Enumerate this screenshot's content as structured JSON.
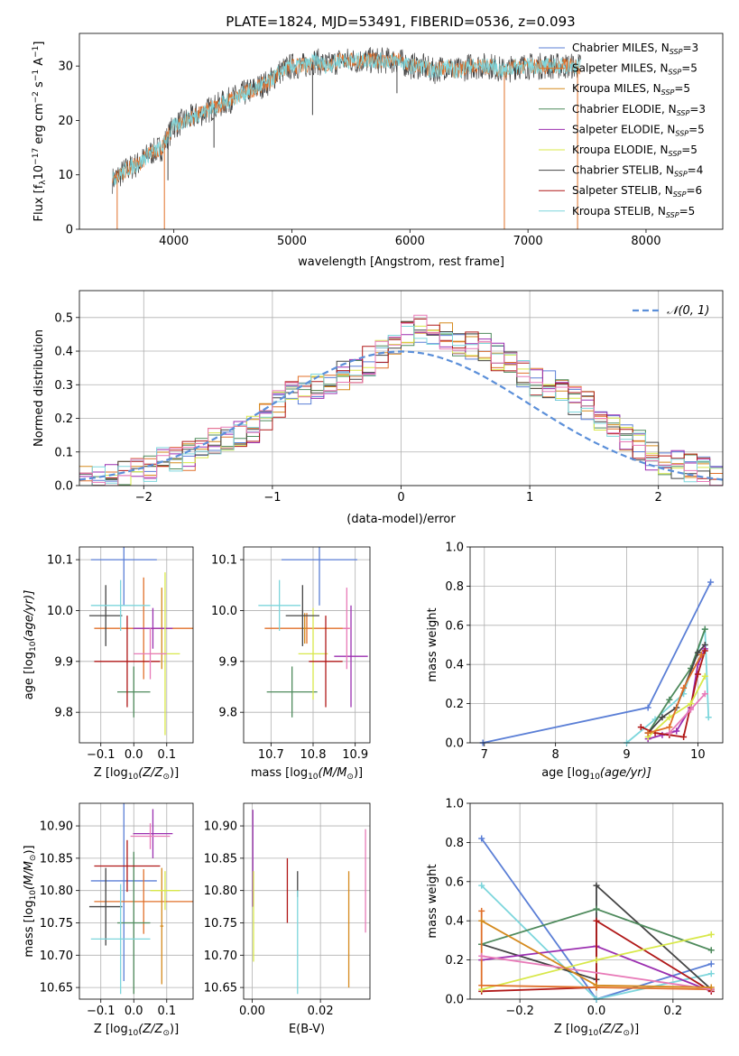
{
  "figure": {
    "title": "PLATE=1824, MJD=53491, FIBERID=0536, z=0.093"
  },
  "series_styles": [
    {
      "name": "Chabrier MILES, N$_{SSP}$=3",
      "label_main": "Chabrier MILES, N",
      "label_sub": "SSP",
      "label_end": "=3",
      "color": "#5b7fd6"
    },
    {
      "name": "Salpeter MILES, N$_{SSP}$=5",
      "label_main": "Salpeter MILES, N",
      "label_sub": "SSP",
      "label_end": "=5",
      "color": "#e0702a"
    },
    {
      "name": "Kroupa MILES, N$_{SSP}$=5",
      "label_main": "Kroupa MILES, N",
      "label_sub": "SSP",
      "label_end": "=5",
      "color": "#d58a1e"
    },
    {
      "name": "Chabrier ELODIE, N$_{SSP}$=3",
      "label_main": "Chabrier ELODIE, N",
      "label_sub": "SSP",
      "label_end": "=3",
      "color": "#4e8a5c"
    },
    {
      "name": "Salpeter ELODIE, N$_{SSP}$=5",
      "label_main": "Salpeter ELODIE, N",
      "label_sub": "SSP",
      "label_end": "=5",
      "color": "#9b2fb0"
    },
    {
      "name": "Kroupa ELODIE, N$_{SSP}$=5",
      "label_main": "Kroupa ELODIE, N",
      "label_sub": "SSP",
      "label_end": "=5",
      "color": "#d8e84a"
    },
    {
      "name": "Chabrier STELIB, N$_{SSP}$=4",
      "label_main": "Chabrier STELIB, N",
      "label_sub": "SSP",
      "label_end": "=4",
      "color": "#444444"
    },
    {
      "name": "Salpeter STELIB, N$_{SSP}$=6",
      "label_main": "Salpeter STELIB, N",
      "label_sub": "SSP",
      "label_end": "=6",
      "color": "#b01818"
    },
    {
      "name": "Kroupa STELIB, N$_{SSP}$=5",
      "label_main": "Kroupa STELIB, N",
      "label_sub": "SSP",
      "label_end": "=5",
      "color": "#7dd6dc"
    },
    {
      "name": "pink",
      "color": "#e87ab8"
    }
  ],
  "chart_data": [
    {
      "id": "spectrum",
      "type": "line",
      "title": "PLATE=1824, MJD=53491, FIBERID=0536, z=0.093",
      "xlabel": "wavelength [Angstrom, rest frame]",
      "ylabel": "Flux [f_λ 10^-17 erg cm^-2 s^-1 A^-1]",
      "ylabel_parts": {
        "a": "Flux [f",
        "b": "λ",
        "c": "10",
        "d": "−17",
        "e": " erg cm",
        "f": "−2",
        "g": " s",
        "h": "−1",
        "i": " A",
        "j": "−1",
        "k": "]"
      },
      "xlim": [
        3200,
        8650
      ],
      "ylim": [
        0,
        36
      ],
      "xticks": [
        4000,
        5000,
        6000,
        7000,
        8000
      ],
      "xtick_labels": [
        "4000",
        "5000",
        "6000",
        "7000",
        "8000"
      ],
      "yticks": [
        0,
        10,
        20,
        30
      ],
      "ytick_labels": [
        "0",
        "10",
        "20",
        "30"
      ],
      "continuum": {
        "x": [
          3480,
          3600,
          3700,
          3800,
          3900,
          4000,
          4100,
          4200,
          4300,
          4400,
          4500,
          4600,
          4700,
          4800,
          4900,
          5000,
          5100,
          5200,
          5300,
          5400,
          5500,
          5600,
          5700,
          5800,
          5900,
          6000,
          6100,
          6200,
          6300,
          6400,
          6500,
          6600,
          6700,
          6800,
          6900,
          7000,
          7100,
          7200,
          7300,
          7400,
          7450
        ],
        "y": [
          9,
          11,
          12,
          14,
          15,
          19,
          20,
          21,
          22,
          23,
          24,
          25,
          26,
          27,
          29,
          30,
          30,
          31,
          30,
          31,
          31,
          31,
          31,
          31,
          31,
          30,
          30,
          29,
          30,
          29,
          30,
          30,
          30,
          29,
          30,
          30,
          30,
          30,
          30,
          30,
          30
        ]
      },
      "dips": [
        {
          "x": 3520,
          "y": 0
        },
        {
          "x": 3920,
          "y": 0
        },
        {
          "x": 6800,
          "y": 0
        },
        {
          "x": 7420,
          "y": 0
        },
        {
          "x": 3950,
          "y": 9
        },
        {
          "x": 4340,
          "y": 15
        },
        {
          "x": 5175,
          "y": 21
        },
        {
          "x": 5890,
          "y": 25
        }
      ]
    },
    {
      "id": "residual-histogram",
      "type": "histogram",
      "xlabel": "(data-model)/error",
      "ylabel": "Normed distribution",
      "xlim": [
        -2.5,
        2.5
      ],
      "ylim": [
        0,
        0.58
      ],
      "xticks": [
        -2,
        -1,
        0,
        1,
        2
      ],
      "xtick_labels": [
        "−2",
        "−1",
        "0",
        "1",
        "2"
      ],
      "yticks": [
        0,
        0.1,
        0.2,
        0.3,
        0.4,
        0.5
      ],
      "ytick_labels": [
        "0.0",
        "0.1",
        "0.2",
        "0.3",
        "0.4",
        "0.5"
      ],
      "bin_edges_start": -2.5,
      "bin_width": 0.1,
      "base_hist": [
        0.02,
        0.02,
        0.03,
        0.03,
        0.04,
        0.05,
        0.07,
        0.08,
        0.09,
        0.11,
        0.13,
        0.14,
        0.16,
        0.17,
        0.21,
        0.24,
        0.27,
        0.28,
        0.29,
        0.3,
        0.33,
        0.35,
        0.37,
        0.39,
        0.41,
        0.46,
        0.47,
        0.45,
        0.44,
        0.43,
        0.42,
        0.41,
        0.38,
        0.36,
        0.33,
        0.31,
        0.3,
        0.27,
        0.25,
        0.24,
        0.2,
        0.18,
        0.14,
        0.12,
        0.09,
        0.07,
        0.06,
        0.05,
        0.04,
        0.03
      ],
      "gaussian_label": "𝒩(0, 1)",
      "gaussian_color": "#5b8fd9"
    },
    {
      "id": "age-vs-Z",
      "type": "errorbar",
      "xlabel_main": "Z [log",
      "xlabel_sub": "10",
      "xlabel_end": "(Z/Z",
      "xlabel_tail": ")]",
      "ylabel": "age  [log10(age/yr)]",
      "ylabel_main": "age  [log",
      "ylabel_sub": "10",
      "ylabel_end": "(age/yr)]",
      "xlim": [
        -0.165,
        0.18
      ],
      "ylim": [
        9.74,
        10.125
      ],
      "xticks": [
        -0.1,
        0.0,
        0.1
      ],
      "xtick_labels": [
        "−0.1",
        "0.0",
        "0.1"
      ],
      "yticks": [
        9.8,
        9.9,
        10.0,
        10.1
      ],
      "ytick_labels": [
        "9.8",
        "9.9",
        "10.0",
        "10.1"
      ],
      "points": [
        {
          "s": 0,
          "x": -0.03,
          "y": 10.1,
          "xerr": 0.1,
          "yerr": 0.09
        },
        {
          "s": 1,
          "x": 0.03,
          "y": 9.965,
          "xerr": 0.15,
          "yerr": 0.1
        },
        {
          "s": 2,
          "x": 0.085,
          "y": 9.965,
          "xerr": 0.01,
          "yerr": 0.08
        },
        {
          "s": 3,
          "x": 0.0,
          "y": 9.84,
          "xerr": 0.05,
          "yerr": 0.05
        },
        {
          "s": 4,
          "x": 0.058,
          "y": 9.965,
          "xerr": 0.06,
          "yerr": 0.04
        },
        {
          "s": 5,
          "x": 0.095,
          "y": 9.915,
          "xerr": 0.045,
          "yerr": 0.16
        },
        {
          "s": 6,
          "x": -0.085,
          "y": 9.99,
          "xerr": 0.05,
          "yerr": 0.06
        },
        {
          "s": 7,
          "x": -0.02,
          "y": 9.9,
          "xerr": 0.1,
          "yerr": 0.09
        },
        {
          "s": 8,
          "x": -0.04,
          "y": 10.01,
          "xerr": 0.09,
          "yerr": 0.05
        },
        {
          "s": 9,
          "x": 0.05,
          "y": 9.915,
          "xerr": 0.05,
          "yerr": 0.05
        }
      ]
    },
    {
      "id": "age-vs-mass",
      "type": "errorbar",
      "xlabel_main": "mass [log",
      "xlabel_sub": "10",
      "xlabel_end": "(M/M",
      "xlabel_tail": ")]",
      "xlim": [
        10.635,
        10.935
      ],
      "ylim": [
        9.74,
        10.125
      ],
      "xticks": [
        10.7,
        10.8,
        10.9
      ],
      "xtick_labels": [
        "10.7",
        "10.8",
        "10.9"
      ],
      "yticks": [
        9.8,
        9.9,
        10.0,
        10.1
      ],
      "ytick_labels": [
        "9.8",
        "9.9",
        "10.0",
        "10.1"
      ],
      "points": [
        {
          "s": 0,
          "x": 10.815,
          "y": 10.1,
          "xerr": 0.09,
          "yerr": 0.09
        },
        {
          "s": 1,
          "x": 10.785,
          "y": 9.965,
          "xerr": 0.1,
          "yerr": 0.03
        },
        {
          "s": 2,
          "x": 10.78,
          "y": 9.965,
          "xerr": 0.005,
          "yerr": 0.03
        },
        {
          "s": 3,
          "x": 10.75,
          "y": 9.84,
          "xerr": 0.06,
          "yerr": 0.05
        },
        {
          "s": 4,
          "x": 10.89,
          "y": 9.91,
          "xerr": 0.04,
          "yerr": 0.1
        },
        {
          "s": 5,
          "x": 10.8,
          "y": 9.915,
          "xerr": 0.035,
          "yerr": 0.09
        },
        {
          "s": 6,
          "x": 10.775,
          "y": 9.99,
          "xerr": 0.04,
          "yerr": 0.06
        },
        {
          "s": 7,
          "x": 10.83,
          "y": 9.9,
          "xerr": 0.04,
          "yerr": 0.09
        },
        {
          "s": 8,
          "x": 10.72,
          "y": 10.01,
          "xerr": 0.05,
          "yerr": 0.05
        },
        {
          "s": 9,
          "x": 10.88,
          "y": 9.965,
          "xerr": 0.01,
          "yerr": 0.08
        }
      ]
    },
    {
      "id": "mass-weight-vs-age",
      "type": "line",
      "xlabel_main": "age  [log",
      "xlabel_sub": "10",
      "xlabel_end": "(age/yr)]",
      "ylabel": "mass weight",
      "xlim": [
        6.8,
        10.35
      ],
      "ylim": [
        0,
        1
      ],
      "xticks": [
        7,
        8,
        9,
        10
      ],
      "xtick_labels": [
        "7",
        "8",
        "9",
        "10"
      ],
      "yticks": [
        0,
        0.2,
        0.4,
        0.6,
        0.8,
        1.0
      ],
      "ytick_labels": [
        "0.0",
        "0.2",
        "0.4",
        "0.6",
        "0.8",
        "1.0"
      ],
      "series": [
        {
          "s": 0,
          "x": [
            6.98,
            9.3,
            10.18
          ],
          "y": [
            0.0,
            0.18,
            0.82
          ]
        },
        {
          "s": 8,
          "x": [
            9.0,
            9.4,
            9.8,
            10.1,
            10.15
          ],
          "y": [
            0.0,
            0.12,
            0.25,
            0.58,
            0.13
          ]
        },
        {
          "s": 3,
          "x": [
            9.3,
            9.6,
            9.9,
            10.1
          ],
          "y": [
            0.05,
            0.22,
            0.38,
            0.58
          ]
        },
        {
          "s": 6,
          "x": [
            9.3,
            9.5,
            9.7,
            10.0,
            10.1
          ],
          "y": [
            0.05,
            0.13,
            0.18,
            0.46,
            0.5
          ]
        },
        {
          "s": 4,
          "x": [
            9.3,
            9.5,
            9.7,
            9.9,
            10.0,
            10.1
          ],
          "y": [
            0.02,
            0.04,
            0.06,
            0.18,
            0.4,
            0.48
          ]
        },
        {
          "s": 7,
          "x": [
            9.2,
            9.4,
            9.6,
            9.8,
            10.0,
            10.1
          ],
          "y": [
            0.08,
            0.05,
            0.04,
            0.03,
            0.35,
            0.47
          ]
        },
        {
          "s": 5,
          "x": [
            9.3,
            9.6,
            9.9,
            10.1
          ],
          "y": [
            0.03,
            0.13,
            0.2,
            0.34
          ]
        },
        {
          "s": 1,
          "x": [
            9.3,
            9.6,
            9.8,
            10.05
          ],
          "y": [
            0.05,
            0.08,
            0.28,
            0.45
          ]
        },
        {
          "s": 9,
          "x": [
            9.6,
            9.9,
            10.1
          ],
          "y": [
            0.05,
            0.17,
            0.25
          ]
        }
      ]
    },
    {
      "id": "mass-vs-Z",
      "type": "errorbar",
      "xlabel_main": "Z [log",
      "xlabel_sub": "10",
      "xlabel_end": "(Z/Z",
      "xlabel_tail": ")]",
      "ylabel_main": "mass [log",
      "ylabel_sub": "10",
      "ylabel_end": "(M/M",
      "ylabel_tail": ")]",
      "xlim": [
        -0.165,
        0.18
      ],
      "ylim": [
        10.632,
        10.935
      ],
      "xticks": [
        -0.1,
        0.0,
        0.1
      ],
      "xtick_labels": [
        "−0.1",
        "0.0",
        "0.1"
      ],
      "yticks": [
        10.65,
        10.7,
        10.75,
        10.8,
        10.85,
        10.9
      ],
      "ytick_labels": [
        "10.65",
        "10.70",
        "10.75",
        "10.80",
        "10.85",
        "10.90"
      ],
      "points": [
        {
          "s": 0,
          "x": -0.03,
          "y": 10.815,
          "xerr": 0.1,
          "yerr": 0.155
        },
        {
          "s": 1,
          "x": 0.03,
          "y": 10.783,
          "xerr": 0.15,
          "yerr": 0.05
        },
        {
          "s": 2,
          "x": 0.085,
          "y": 10.745,
          "xerr": 0.005,
          "yerr": 0.09
        },
        {
          "s": 3,
          "x": 0.0,
          "y": 10.75,
          "xerr": 0.05,
          "yerr": 0.11
        },
        {
          "s": 4,
          "x": 0.058,
          "y": 10.888,
          "xerr": 0.06,
          "yerr": 0.038
        },
        {
          "s": 5,
          "x": 0.095,
          "y": 10.8,
          "xerr": 0.045,
          "yerr": 0.03
        },
        {
          "s": 6,
          "x": -0.085,
          "y": 10.775,
          "xerr": 0.05,
          "yerr": 0.06
        },
        {
          "s": 7,
          "x": -0.02,
          "y": 10.838,
          "xerr": 0.1,
          "yerr": 0.04
        },
        {
          "s": 8,
          "x": -0.04,
          "y": 10.725,
          "xerr": 0.09,
          "yerr": 0.085
        },
        {
          "s": 9,
          "x": 0.05,
          "y": 10.884,
          "xerr": 0.06,
          "yerr": 0.02
        }
      ]
    },
    {
      "id": "mass-vs-EBV",
      "type": "errorbar",
      "xlabel": "E(B-V)",
      "xlim": [
        -0.0025,
        0.0345
      ],
      "ylim": [
        10.632,
        10.935
      ],
      "xticks": [
        0.0,
        0.02
      ],
      "xtick_labels": [
        "0.00",
        "0.02"
      ],
      "yticks": [
        10.65,
        10.7,
        10.75,
        10.8,
        10.85,
        10.9
      ],
      "ytick_labels": [
        "10.65",
        "10.70",
        "10.75",
        "10.80",
        "10.85",
        "10.90"
      ],
      "points": [
        {
          "s": 4,
          "x": 0.0002,
          "y": 10.85,
          "xerr": 0,
          "yerr": 0.075
        },
        {
          "s": 5,
          "x": 0.0004,
          "y": 10.76,
          "xerr": 0,
          "yerr": 0.07
        },
        {
          "s": 7,
          "x": 0.0103,
          "y": 10.8,
          "xerr": 0,
          "yerr": 0.05
        },
        {
          "s": 6,
          "x": 0.0133,
          "y": 10.81,
          "xerr": 0,
          "yerr": 0.02
        },
        {
          "s": 8,
          "x": 0.0133,
          "y": 10.72,
          "xerr": 0,
          "yerr": 0.08
        },
        {
          "s": 2,
          "x": 0.0283,
          "y": 10.74,
          "xerr": 0,
          "yerr": 0.09
        },
        {
          "s": 9,
          "x": 0.0332,
          "y": 10.815,
          "xerr": 0,
          "yerr": 0.08
        }
      ]
    },
    {
      "id": "mass-weight-vs-Z",
      "type": "line",
      "xlabel_main": "Z [log",
      "xlabel_sub": "10",
      "xlabel_end": "(Z/Z",
      "xlabel_tail": ")]",
      "ylabel": "mass weight",
      "xlim": [
        -0.33,
        0.33
      ],
      "ylim": [
        0,
        1
      ],
      "xticks": [
        -0.2,
        0.0,
        0.2
      ],
      "xtick_labels": [
        "−0.2",
        "0.0",
        "0.2"
      ],
      "yticks": [
        0,
        0.2,
        0.4,
        0.6,
        0.8,
        1.0
      ],
      "ytick_labels": [
        "0.0",
        "0.2",
        "0.4",
        "0.6",
        "0.8",
        "1.0"
      ],
      "series": [
        {
          "s": 0,
          "x": [
            -0.3,
            0.0,
            0.3
          ],
          "y": [
            0.82,
            0.0,
            0.18
          ]
        },
        {
          "s": 8,
          "x": [
            -0.3,
            0.0,
            0.3
          ],
          "y": [
            0.58,
            0.0,
            0.13
          ]
        },
        {
          "s": 6,
          "x": [
            -0.3,
            0.0,
            0.0,
            0.3
          ],
          "y": [
            0.28,
            0.1,
            0.58,
            0.05
          ]
        },
        {
          "s": 3,
          "x": [
            -0.3,
            0.0,
            0.3
          ],
          "y": [
            0.28,
            0.46,
            0.25
          ]
        },
        {
          "s": 4,
          "x": [
            -0.3,
            0.0,
            0.3
          ],
          "y": [
            0.2,
            0.27,
            0.04
          ]
        },
        {
          "s": 7,
          "x": [
            -0.3,
            0.0,
            0.0,
            0.3
          ],
          "y": [
            0.04,
            0.06,
            0.4,
            0.04
          ]
        },
        {
          "s": 5,
          "x": [
            -0.3,
            0.0,
            0.3
          ],
          "y": [
            0.05,
            0.2,
            0.33
          ]
        },
        {
          "s": 1,
          "x": [
            -0.3,
            -0.3,
            0.0,
            0.3
          ],
          "y": [
            0.45,
            0.07,
            0.06,
            0.05
          ]
        },
        {
          "s": 9,
          "x": [
            -0.3,
            0.3
          ],
          "y": [
            0.22,
            0.05
          ]
        },
        {
          "s": 2,
          "x": [
            -0.3,
            0.0,
            0.3
          ],
          "y": [
            0.4,
            0.07,
            0.06
          ]
        }
      ]
    }
  ]
}
